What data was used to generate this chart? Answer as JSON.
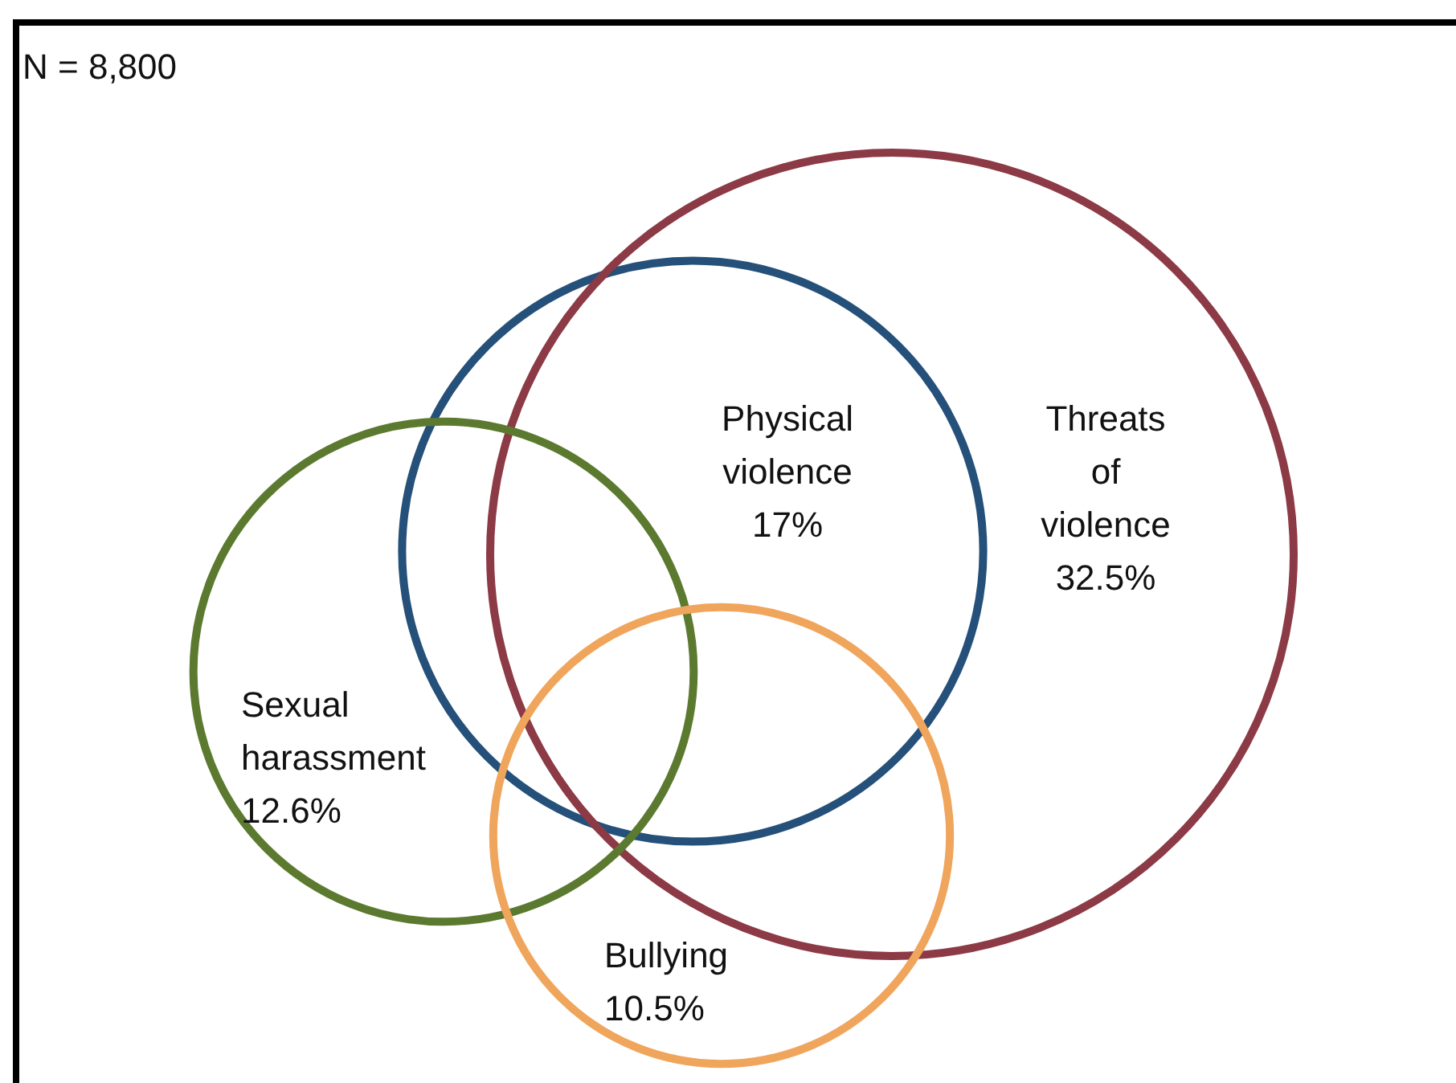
{
  "chart_data": {
    "type": "other",
    "annotations": [
      "N = 8,800"
    ],
    "categories": [
      "Physical violence",
      "Threats of violence",
      "Sexual harassment",
      "Bullying"
    ],
    "values": [
      17,
      32.5,
      12.6,
      10.5
    ],
    "value_labels": [
      "17%",
      "32.5%",
      "12.6%",
      "10.5%"
    ],
    "colors": [
      "#24507a",
      "#8c3a45",
      "#5b7a2f",
      "#f0a55c"
    ]
  }
}
